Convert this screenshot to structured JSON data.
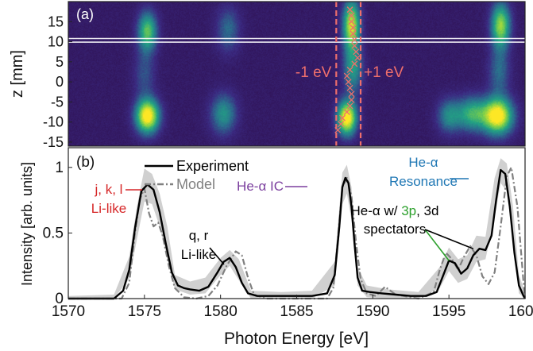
{
  "chart_data": [
    {
      "type": "heatmap",
      "panel_label": "(a)",
      "ylabel": "z [mm]",
      "ylim": [
        -16,
        20
      ],
      "xlim": [
        1570,
        1600
      ],
      "y_ticks": [
        "15",
        "10",
        "5",
        "0",
        "-5",
        "-10",
        "-15"
      ],
      "y_tick_values": [
        15,
        10,
        5,
        0,
        -5,
        -10,
        -15
      ],
      "colormap": [
        "#2e0f4f",
        "#3b2a82",
        "#2b6f8e",
        "#22a384",
        "#7dd04a",
        "#fde725"
      ],
      "highlight_band_z": [
        9.9,
        10.8
      ],
      "window_lines_eV": [
        1587.6,
        1589.2
      ],
      "window_label_left": "-1 eV",
      "window_label_right": "+1 eV",
      "centroid_markers": [
        {
          "energy": 1588.5,
          "z": 18
        },
        {
          "energy": 1588.6,
          "z": 16.5
        },
        {
          "energy": 1588.6,
          "z": 15
        },
        {
          "energy": 1588.7,
          "z": 13.5
        },
        {
          "energy": 1588.7,
          "z": 12
        },
        {
          "energy": 1588.8,
          "z": 10.5
        },
        {
          "energy": 1588.8,
          "z": 9
        },
        {
          "energy": 1588.9,
          "z": 7.5
        },
        {
          "energy": 1589.0,
          "z": 6
        },
        {
          "energy": 1588.8,
          "z": 4.5
        },
        {
          "energy": 1588.5,
          "z": 3
        },
        {
          "energy": 1588.3,
          "z": 1.5
        },
        {
          "energy": 1588.4,
          "z": 0
        },
        {
          "energy": 1588.5,
          "z": -1.5
        },
        {
          "energy": 1588.6,
          "z": -3
        },
        {
          "energy": 1588.6,
          "z": -4.5
        },
        {
          "energy": 1588.5,
          "z": -6
        },
        {
          "energy": 1588.3,
          "z": -7.5
        },
        {
          "energy": 1588.0,
          "z": -9
        },
        {
          "energy": 1587.9,
          "z": -10.5
        },
        {
          "energy": 1587.7,
          "z": -12
        }
      ],
      "emission_features": [
        {
          "energy": 1575.2,
          "z": -8.5,
          "amp": 1.0,
          "sx": 0.55,
          "sz": 3.0
        },
        {
          "energy": 1575.2,
          "z": 12.5,
          "amp": 0.65,
          "sx": 0.45,
          "sz": 3.5
        },
        {
          "energy": 1575.0,
          "z": 2.0,
          "amp": 0.22,
          "sx": 0.5,
          "sz": 4.0
        },
        {
          "energy": 1580.2,
          "z": -8.0,
          "amp": 0.45,
          "sx": 0.6,
          "sz": 3.5
        },
        {
          "energy": 1580.5,
          "z": 13.0,
          "amp": 0.3,
          "sx": 0.55,
          "sz": 4.0
        },
        {
          "energy": 1588.3,
          "z": -9.0,
          "amp": 1.0,
          "sx": 0.45,
          "sz": 3.0
        },
        {
          "energy": 1588.6,
          "z": 14.0,
          "amp": 0.85,
          "sx": 0.4,
          "sz": 4.5
        },
        {
          "energy": 1588.7,
          "z": 3.0,
          "amp": 0.45,
          "sx": 0.45,
          "sz": 4.0
        },
        {
          "energy": 1595.0,
          "z": -8.5,
          "amp": 0.4,
          "sx": 0.55,
          "sz": 3.0
        },
        {
          "energy": 1596.5,
          "z": -8.0,
          "amp": 0.55,
          "sx": 0.7,
          "sz": 3.0
        },
        {
          "energy": 1598.2,
          "z": -8.5,
          "amp": 1.0,
          "sx": 0.7,
          "sz": 3.2
        },
        {
          "energy": 1598.4,
          "z": 14.0,
          "amp": 0.75,
          "sx": 0.45,
          "sz": 4.0
        },
        {
          "energy": 1598.3,
          "z": 2.5,
          "amp": 0.3,
          "sx": 0.5,
          "sz": 4.0
        }
      ]
    },
    {
      "type": "line",
      "panel_label": "(b)",
      "xlabel": "Photon Energy [eV]",
      "ylabel": "Intensity [arb. units]",
      "xlim": [
        1570,
        1600
      ],
      "ylim": [
        0,
        1.15
      ],
      "x_ticks": [
        "1570",
        "1575",
        "1580",
        "1585",
        "1590",
        "1595",
        "1600"
      ],
      "x_tick_values": [
        1570,
        1575,
        1580,
        1585,
        1590,
        1595,
        1600
      ],
      "y_ticks": [
        "0",
        "0.5",
        "1"
      ],
      "y_tick_values": [
        0,
        0.5,
        1
      ],
      "legend_position": "top-left",
      "series": [
        {
          "name": "Experiment",
          "color": "#000000",
          "style": "solid",
          "x": [
            1570,
            1573,
            1573.6,
            1574,
            1574.4,
            1574.8,
            1575.2,
            1575.6,
            1576.0,
            1576.4,
            1576.8,
            1577.2,
            1577.6,
            1578.0,
            1578.6,
            1579.2,
            1579.8,
            1580.2,
            1580.6,
            1581.0,
            1581.4,
            1581.8,
            1582.4,
            1583.0,
            1584.0,
            1585.0,
            1586.0,
            1587.0,
            1587.5,
            1587.8,
            1588.0,
            1588.2,
            1588.4,
            1588.6,
            1588.8,
            1589.0,
            1589.3,
            1589.8,
            1590.6,
            1591.5,
            1592.5,
            1593.5,
            1594.2,
            1594.6,
            1595.0,
            1595.4,
            1595.8,
            1596.2,
            1596.6,
            1597.0,
            1597.4,
            1597.8,
            1598.1,
            1598.4,
            1598.7,
            1599.0,
            1599.3,
            1599.6,
            1599.9,
            1600
          ],
          "y": [
            0.0,
            0.0,
            0.06,
            0.22,
            0.55,
            0.82,
            0.87,
            0.83,
            0.66,
            0.42,
            0.2,
            0.1,
            0.08,
            0.07,
            0.06,
            0.09,
            0.2,
            0.28,
            0.31,
            0.24,
            0.12,
            0.04,
            0.02,
            0.02,
            0.02,
            0.02,
            0.02,
            0.04,
            0.18,
            0.55,
            0.85,
            0.92,
            0.88,
            0.7,
            0.42,
            0.16,
            0.06,
            0.05,
            0.04,
            0.03,
            0.02,
            0.02,
            0.05,
            0.17,
            0.29,
            0.27,
            0.19,
            0.23,
            0.33,
            0.38,
            0.37,
            0.48,
            0.75,
            0.98,
            0.95,
            0.7,
            0.35,
            0.1,
            0.02,
            0.0
          ]
        },
        {
          "name": "Model",
          "color": "#808080",
          "style": "dashed",
          "x": [
            1570,
            1573.5,
            1574.0,
            1574.4,
            1574.7,
            1575.0,
            1575.3,
            1575.6,
            1575.9,
            1576.2,
            1576.6,
            1577.0,
            1577.6,
            1578.4,
            1579.2,
            1579.8,
            1580.4,
            1581.0,
            1581.4,
            1581.8,
            1582.2,
            1583.0,
            1585.0,
            1587.0,
            1587.4,
            1587.7,
            1588.0,
            1588.3,
            1588.6,
            1588.9,
            1589.2,
            1589.6,
            1590.2,
            1590.8,
            1591.5,
            1593.0,
            1594.0,
            1594.4,
            1594.8,
            1595.2,
            1595.6,
            1596.0,
            1596.4,
            1596.8,
            1597.2,
            1597.6,
            1598.0,
            1598.4,
            1598.8,
            1599.1,
            1599.5,
            1599.9,
            1600
          ],
          "y": [
            0.0,
            0.0,
            0.12,
            0.52,
            0.76,
            0.84,
            0.65,
            0.55,
            0.58,
            0.48,
            0.25,
            0.08,
            0.01,
            0.0,
            0.02,
            0.1,
            0.25,
            0.36,
            0.33,
            0.16,
            0.03,
            0.0,
            0.0,
            0.0,
            0.08,
            0.45,
            0.85,
            0.92,
            0.78,
            0.42,
            0.15,
            0.04,
            0.02,
            0.09,
            0.03,
            0.0,
            0.05,
            0.22,
            0.35,
            0.3,
            0.22,
            0.32,
            0.4,
            0.33,
            0.17,
            0.11,
            0.2,
            0.55,
            0.93,
            1.0,
            0.7,
            0.12,
            0.0
          ]
        }
      ],
      "uncertainty_band": {
        "color": "#c8c8c8",
        "x": [
          1570,
          1573,
          1574,
          1574.5,
          1575.0,
          1575.5,
          1576.0,
          1576.5,
          1577.0,
          1578.0,
          1579.0,
          1580.0,
          1580.6,
          1581.2,
          1582.0,
          1584.0,
          1586.0,
          1587.5,
          1588.0,
          1588.3,
          1588.6,
          1589.0,
          1589.6,
          1591.0,
          1593.0,
          1594.4,
          1595.0,
          1595.6,
          1596.2,
          1596.8,
          1597.4,
          1598.0,
          1598.4,
          1598.8,
          1599.2,
          1599.6,
          1600
        ],
        "lower": [
          0.0,
          0.0,
          0.15,
          0.45,
          0.74,
          0.72,
          0.55,
          0.3,
          0.07,
          0.03,
          0.04,
          0.18,
          0.25,
          0.14,
          0.0,
          0.0,
          0.0,
          0.1,
          0.72,
          0.8,
          0.6,
          0.1,
          0.01,
          0.0,
          0.0,
          0.08,
          0.21,
          0.12,
          0.15,
          0.28,
          0.3,
          0.62,
          0.88,
          0.82,
          0.45,
          0.04,
          0.0
        ],
        "upper": [
          0.02,
          0.03,
          0.32,
          0.7,
          0.99,
          0.95,
          0.8,
          0.55,
          0.18,
          0.13,
          0.16,
          0.31,
          0.37,
          0.3,
          0.06,
          0.05,
          0.06,
          0.28,
          0.96,
          1.02,
          0.85,
          0.24,
          0.1,
          0.07,
          0.05,
          0.24,
          0.39,
          0.3,
          0.33,
          0.48,
          0.47,
          0.92,
          1.07,
          1.03,
          0.71,
          0.18,
          0.05
        ]
      },
      "annotations": [
        {
          "id": "jkl",
          "lines": [
            {
              "text": "j, k, l",
              "color": "#d62728"
            },
            {
              "text": "Li-like",
              "color": "#d62728"
            }
          ],
          "points_to": {
            "x": 1575.2,
            "y": 0.87
          }
        },
        {
          "id": "qr",
          "lines": [
            {
              "text": "q, r",
              "color": "#000000"
            },
            {
              "text": "Li-like",
              "color": "#000000"
            }
          ],
          "points_to": {
            "x": 1580.6,
            "y": 0.31
          }
        },
        {
          "id": "heic",
          "lines": [
            {
              "text": "He-α IC",
              "color": "#7b3f9e"
            }
          ],
          "points_to": {
            "x": 1588.2,
            "y": 0.92
          }
        },
        {
          "id": "heres",
          "lines": [
            {
              "text": "He-α",
              "color": "#1f77b4"
            },
            {
              "text": "Resonance",
              "color": "#1f77b4"
            }
          ],
          "points_to": {
            "x": 1598.3,
            "y": 0.99
          }
        },
        {
          "id": "spect",
          "lines": [
            {
              "parts": [
                {
                  "text": "He-α w/ ",
                  "color": "#000000"
                },
                {
                  "text": "3p",
                  "color": "#2ca02c"
                },
                {
                  "text": ", 3d",
                  "color": "#000000"
                }
              ]
            },
            {
              "text": "spectators",
              "color": "#000000"
            }
          ],
          "points_to": [
            {
              "x": 1595.0,
              "y": 0.29,
              "color": "#2ca02c"
            },
            {
              "x": 1596.6,
              "y": 0.38,
              "color": "#000000"
            }
          ]
        }
      ]
    }
  ]
}
